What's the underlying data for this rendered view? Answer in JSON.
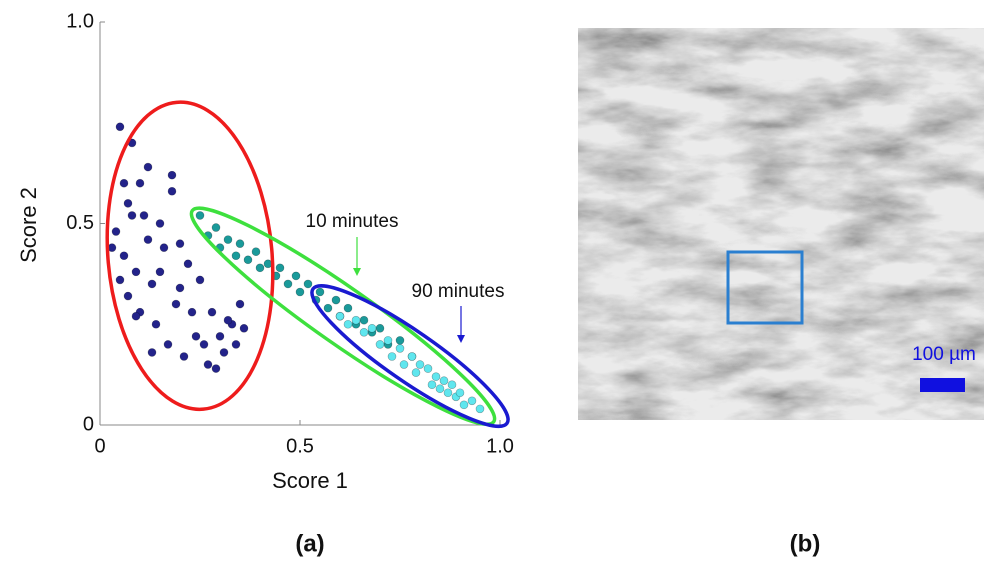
{
  "chart_data": {
    "type": "scatter",
    "xlabel": "Score 1",
    "ylabel": "Score 2",
    "panel_label": "(a)",
    "xlim": [
      0,
      1
    ],
    "ylim": [
      0,
      1
    ],
    "xticks": [
      0,
      0.5,
      {
        "value": 1,
        "label": "1.0"
      }
    ],
    "yticks": [
      0,
      0.5,
      {
        "value": 1,
        "label": "1.0"
      }
    ],
    "series": [
      {
        "color": "#23238a",
        "x": [
          0.05,
          0.08,
          0.07,
          0.1,
          0.12,
          0.15,
          0.18,
          0.2,
          0.04,
          0.06,
          0.09,
          0.11,
          0.13,
          0.16,
          0.19,
          0.22,
          0.25,
          0.28,
          0.3,
          0.33,
          0.35,
          0.03,
          0.07,
          0.1,
          0.14,
          0.17,
          0.21,
          0.24,
          0.27,
          0.31,
          0.34,
          0.08,
          0.12,
          0.15,
          0.2,
          0.23,
          0.26,
          0.29,
          0.32,
          0.36,
          0.06,
          0.09,
          0.18,
          0.13,
          0.05
        ],
        "y": [
          0.74,
          0.7,
          0.55,
          0.6,
          0.64,
          0.5,
          0.58,
          0.45,
          0.48,
          0.42,
          0.38,
          0.52,
          0.35,
          0.44,
          0.3,
          0.4,
          0.36,
          0.28,
          0.22,
          0.25,
          0.3,
          0.44,
          0.32,
          0.28,
          0.25,
          0.2,
          0.17,
          0.22,
          0.15,
          0.18,
          0.2,
          0.52,
          0.46,
          0.38,
          0.34,
          0.28,
          0.2,
          0.14,
          0.26,
          0.24,
          0.6,
          0.27,
          0.62,
          0.18,
          0.36
        ]
      },
      {
        "color": "#1a9a9a",
        "x": [
          0.25,
          0.27,
          0.29,
          0.3,
          0.32,
          0.34,
          0.35,
          0.37,
          0.39,
          0.4,
          0.42,
          0.44,
          0.45,
          0.47,
          0.49,
          0.5,
          0.52,
          0.54,
          0.55,
          0.57,
          0.59,
          0.6,
          0.62,
          0.64,
          0.66,
          0.68,
          0.7,
          0.72,
          0.75,
          0.78
        ],
        "y": [
          0.52,
          0.47,
          0.49,
          0.44,
          0.46,
          0.42,
          0.45,
          0.41,
          0.43,
          0.39,
          0.4,
          0.37,
          0.39,
          0.35,
          0.37,
          0.33,
          0.35,
          0.31,
          0.33,
          0.29,
          0.31,
          0.27,
          0.29,
          0.25,
          0.26,
          0.23,
          0.24,
          0.2,
          0.21,
          0.17
        ]
      },
      {
        "color": "#5fe6ee",
        "x": [
          0.6,
          0.62,
          0.64,
          0.66,
          0.68,
          0.7,
          0.72,
          0.73,
          0.75,
          0.76,
          0.78,
          0.79,
          0.8,
          0.82,
          0.83,
          0.84,
          0.85,
          0.86,
          0.87,
          0.88,
          0.89,
          0.9,
          0.91,
          0.93,
          0.95
        ],
        "y": [
          0.27,
          0.25,
          0.26,
          0.23,
          0.24,
          0.2,
          0.21,
          0.17,
          0.19,
          0.15,
          0.17,
          0.13,
          0.15,
          0.14,
          0.1,
          0.12,
          0.09,
          0.11,
          0.08,
          0.1,
          0.07,
          0.08,
          0.05,
          0.06,
          0.04
        ]
      }
    ],
    "ellipses": [
      {
        "color": "#ee1c1c",
        "cx": 0.225,
        "cy": 0.42,
        "rx": 0.205,
        "ry": 0.385,
        "angle": -5
      },
      {
        "color": "#3ee03e",
        "cx": 0.6075,
        "cy": 0.27,
        "rx": 0.46,
        "ry": 0.07,
        "angle": 35
      },
      {
        "color": "#1a1ad0",
        "cx": 0.775,
        "cy": 0.171,
        "rx": 0.295,
        "ry": 0.062,
        "angle": 34.7
      }
    ],
    "annotations": [
      {
        "text": "10 minutes",
        "color": "#3ee03e"
      },
      {
        "text": "90 minutes",
        "color": "#1a1ad0"
      }
    ]
  },
  "image_panel": {
    "panel_label": "(b)",
    "scale_bar": "100 µm"
  }
}
